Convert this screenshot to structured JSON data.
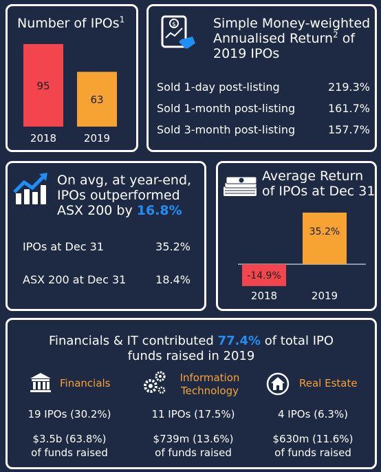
{
  "ipos_card": {
    "title": "Number of IPOs",
    "title_sup": "1"
  },
  "returns_card": {
    "title_line1": "Simple Money-weighted",
    "title_line2": "Annualised Return",
    "title_sup": "2",
    "title_line2_suffix": " of",
    "title_line3": "2019 IPOs",
    "rows": [
      {
        "label": "Sold 1-day post-listing",
        "value": "219.3%"
      },
      {
        "label": "Sold 1-month post-listing",
        "value": "161.7%"
      },
      {
        "label": "Sold 3-month post-listing",
        "value": "157.7%"
      }
    ]
  },
  "outperf_card": {
    "title_line1": "On avg, at year-end,",
    "title_line2": "IPOs outperformed",
    "title_line3_prefix": "ASX 200 by ",
    "title_highlight": "16.8%",
    "rows": [
      {
        "label": "IPOs at Dec 31",
        "value": "35.2%"
      },
      {
        "label": "ASX 200 at Dec 31",
        "value": "18.4%"
      }
    ]
  },
  "avgret_card": {
    "title_line1": "Average Return",
    "title_line2": "of IPOs at Dec 31"
  },
  "sectors_card": {
    "title_prefix": "Financials & IT contributed ",
    "title_highlight": "77.4%",
    "title_suffix": " of total IPO",
    "title_line2": "funds raised in 2019",
    "sectors": [
      {
        "label_line1": "Financials",
        "label_line2": "",
        "ipos": "19 IPOs (30.2%)",
        "funds": "$3.5b (63.8%)",
        "funds_caption": "of funds raised",
        "icon": "bank-icon"
      },
      {
        "label_line1": "Information",
        "label_line2": "Technology",
        "ipos": "11 IPOs (17.5%)",
        "funds": "$739m (13.6%)",
        "funds_caption": "of funds raised",
        "icon": "gears-icon"
      },
      {
        "label_line1": "Real Estate",
        "label_line2": "",
        "ipos": "4 IPOs (6.3%)",
        "funds": "$630m (11.6%)",
        "funds_caption": "of funds raised",
        "icon": "house-icon"
      }
    ]
  },
  "colors": {
    "background": "#1e2a44",
    "red": "#f2454e",
    "orange": "#f7a334",
    "accent_blue": "#1f8ff5"
  },
  "chart_data": [
    {
      "type": "bar",
      "title": "Number of IPOs",
      "categories": [
        "2018",
        "2019"
      ],
      "values": [
        95,
        63
      ],
      "data_labels": [
        "95",
        "63"
      ],
      "colors": [
        "#f2454e",
        "#f7a334"
      ],
      "ylim": [
        0,
        95
      ]
    },
    {
      "type": "bar",
      "title": "Average Return of IPOs at Dec 31",
      "categories": [
        "2018",
        "2019"
      ],
      "values": [
        -14.9,
        35.2
      ],
      "data_labels": [
        "-14.9%",
        "35.2%"
      ],
      "colors": [
        "#f2454e",
        "#f7a334"
      ],
      "ylim": [
        -14.9,
        35.2
      ]
    }
  ]
}
